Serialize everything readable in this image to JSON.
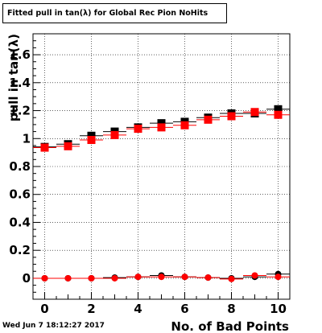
{
  "chart_data": {
    "type": "scatter",
    "title": "Fitted pull in tan(λ) for Global Rec Pion NoHits",
    "xlabel": "No. of Bad Points",
    "ylabel": "pull in tan(λ)",
    "xlim": [
      -0.5,
      10.5
    ],
    "ylim": [
      -0.15,
      1.75
    ],
    "x_ticks": [
      "0",
      "2",
      "4",
      "6",
      "8",
      "10"
    ],
    "y_ticks": [
      "0",
      "0.2",
      "0.4",
      "0.6",
      "0.8",
      "1",
      "1.2",
      "1.4",
      "1.6"
    ],
    "grid": true,
    "x": [
      0,
      1,
      2,
      3,
      4,
      5,
      6,
      7,
      8,
      9,
      10
    ],
    "series": [
      {
        "marker": "square",
        "color": "#000000",
        "values": [
          0.94,
          0.96,
          1.02,
          1.05,
          1.08,
          1.11,
          1.12,
          1.15,
          1.18,
          1.18,
          1.21
        ]
      },
      {
        "marker": "square",
        "color": "#ff0000",
        "values": [
          0.935,
          0.945,
          0.99,
          1.025,
          1.07,
          1.08,
          1.095,
          1.135,
          1.16,
          1.19,
          1.17
        ]
      },
      {
        "marker": "circle",
        "color": "#000000",
        "values": [
          0.0,
          0.0,
          0.0,
          0.005,
          0.01,
          0.02,
          0.01,
          0.005,
          0.0,
          0.01,
          0.03
        ]
      },
      {
        "marker": "circle",
        "color": "#ff0000",
        "values": [
          0.0,
          0.0,
          0.0,
          0.0,
          0.01,
          0.01,
          0.01,
          0.005,
          -0.005,
          0.02,
          0.01
        ]
      }
    ]
  },
  "date_stamp": "Wed Jun  7 18:12:27 2017"
}
